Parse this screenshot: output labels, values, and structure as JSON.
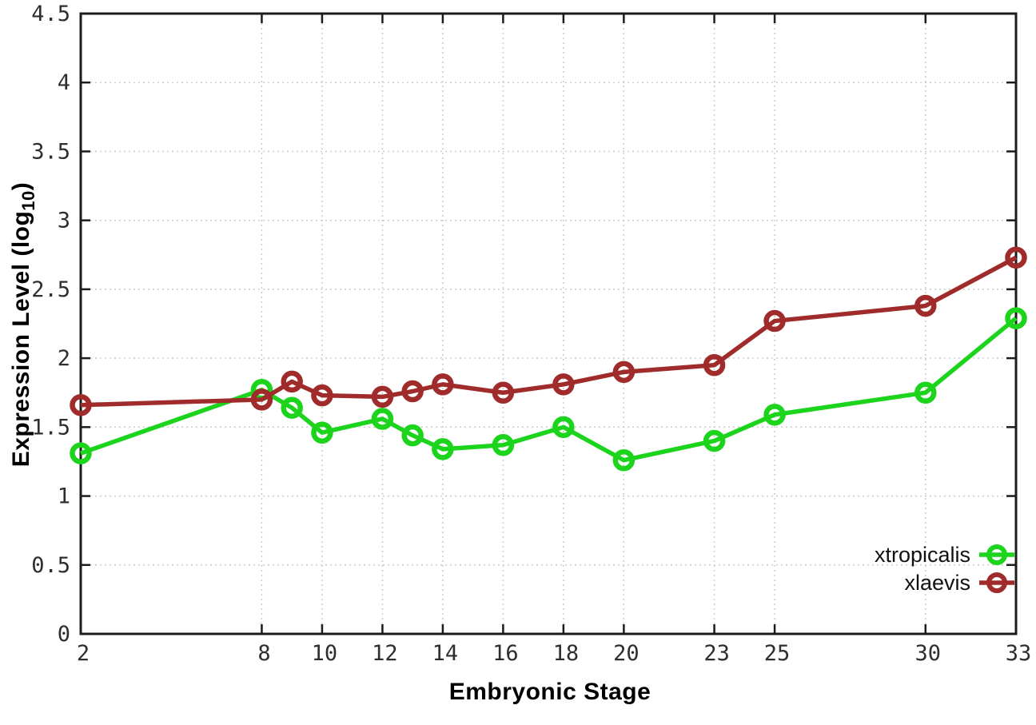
{
  "chart_data": {
    "type": "line",
    "title": "",
    "xlabel": "Embryonic Stage",
    "ylabel": "Expression Level (log10)",
    "ylabel_parts": {
      "main": "Expression Level (log",
      "sub": "10",
      "end": ")"
    },
    "xlim": [
      2,
      33
    ],
    "ylim": [
      0,
      4.5
    ],
    "x_ticks": [
      2,
      8,
      10,
      12,
      14,
      16,
      18,
      20,
      23,
      25,
      30,
      33
    ],
    "y_ticks": [
      0,
      0.5,
      1,
      1.5,
      2,
      2.5,
      3,
      3.5,
      4,
      4.5
    ],
    "y_tick_labels": [
      "0",
      "0.5",
      "1",
      "1.5",
      "2",
      "2.5",
      "3",
      "3.5",
      "4",
      "4.5"
    ],
    "grid": true,
    "legend_position": "bottom-right",
    "x": [
      2,
      8,
      9,
      10,
      12,
      13,
      14,
      16,
      18,
      20,
      23,
      25,
      30,
      33
    ],
    "series": [
      {
        "name": "xtropicalis",
        "color": "#1dd41d",
        "values": [
          1.31,
          1.77,
          1.64,
          1.46,
          1.56,
          1.44,
          1.34,
          1.37,
          1.5,
          1.26,
          1.4,
          1.59,
          1.75,
          2.29
        ]
      },
      {
        "name": "xlaevis",
        "color": "#a02b2b",
        "values": [
          1.66,
          1.7,
          1.83,
          1.73,
          1.72,
          1.76,
          1.81,
          1.75,
          1.81,
          1.9,
          1.95,
          2.27,
          2.38,
          2.73
        ]
      }
    ],
    "colors": {
      "grid": "#c8c8c8",
      "border": "#1c1c1c",
      "tick_label": "#2e2e2e"
    }
  }
}
